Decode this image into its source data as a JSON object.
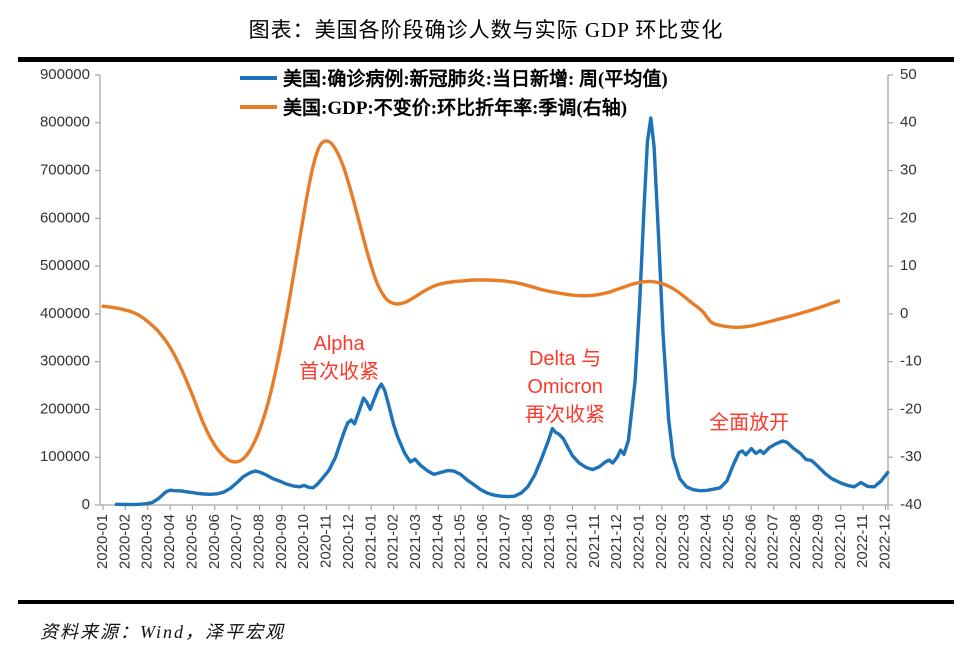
{
  "title": "图表：美国各阶段确诊人数与实际 GDP 环比变化",
  "source_note": "资料来源：Wind，泽平宏观",
  "chart_data": {
    "type": "line",
    "title": "图表：美国各阶段确诊人数与实际 GDP 环比变化",
    "grid": false,
    "legend_position": "top-center",
    "x_labels": [
      "2020-01",
      "2020-02",
      "2020-03",
      "2020-04",
      "2020-05",
      "2020-06",
      "2020-07",
      "2020-08",
      "2020-09",
      "2020-10",
      "2020-11",
      "2020-12",
      "2021-01",
      "2021-02",
      "2021-03",
      "2021-04",
      "2021-05",
      "2021-06",
      "2021-07",
      "2021-08",
      "2021-09",
      "2021-10",
      "2021-11",
      "2021-12",
      "2022-01",
      "2022-02",
      "2022-03",
      "2022-04",
      "2022-05",
      "2022-06",
      "2022-07",
      "2022-08",
      "2022-09",
      "2022-10",
      "2022-11",
      "2022-12"
    ],
    "left_axis": {
      "min": 0,
      "max": 900000,
      "step": 100000
    },
    "right_axis": {
      "min": -40,
      "max": 50,
      "step": 10
    },
    "axis_color": "#a6a6a6",
    "series": [
      {
        "name": "美国:确诊病例:新冠肺炎:当日新增: 周(平均值)",
        "axis": "left",
        "color": "#1e73b8",
        "smooth": false,
        "points": [
          [
            0.6,
            1500
          ],
          [
            1.0,
            1200
          ],
          [
            1.3,
            800
          ],
          [
            1.6,
            1500
          ],
          [
            1.9,
            2500
          ],
          [
            2.2,
            5000
          ],
          [
            2.5,
            14000
          ],
          [
            2.8,
            27000
          ],
          [
            3.0,
            31000
          ],
          [
            3.2,
            30000
          ],
          [
            3.5,
            29500
          ],
          [
            3.8,
            27000
          ],
          [
            4.0,
            26000
          ],
          [
            4.2,
            24500
          ],
          [
            4.5,
            23000
          ],
          [
            4.8,
            22500
          ],
          [
            5.1,
            23500
          ],
          [
            5.4,
            27000
          ],
          [
            5.7,
            35000
          ],
          [
            6.0,
            47000
          ],
          [
            6.3,
            60000
          ],
          [
            6.6,
            68000
          ],
          [
            6.8,
            71000
          ],
          [
            7.0,
            69000
          ],
          [
            7.3,
            63000
          ],
          [
            7.6,
            55000
          ],
          [
            7.9,
            50000
          ],
          [
            8.2,
            44000
          ],
          [
            8.5,
            40000
          ],
          [
            8.8,
            38000
          ],
          [
            9.0,
            41000
          ],
          [
            9.2,
            37000
          ],
          [
            9.4,
            36000
          ],
          [
            9.6,
            44000
          ],
          [
            9.8,
            55000
          ],
          [
            10.1,
            72000
          ],
          [
            10.4,
            100000
          ],
          [
            10.6,
            128000
          ],
          [
            10.8,
            155000
          ],
          [
            10.95,
            172000
          ],
          [
            11.1,
            178000
          ],
          [
            11.25,
            170000
          ],
          [
            11.45,
            196000
          ],
          [
            11.65,
            224000
          ],
          [
            11.8,
            215000
          ],
          [
            11.95,
            200000
          ],
          [
            12.1,
            218000
          ],
          [
            12.3,
            242000
          ],
          [
            12.45,
            253000
          ],
          [
            12.6,
            240000
          ],
          [
            12.8,
            205000
          ],
          [
            13.0,
            168000
          ],
          [
            13.2,
            140000
          ],
          [
            13.5,
            108000
          ],
          [
            13.75,
            90000
          ],
          [
            13.95,
            96000
          ],
          [
            14.2,
            83000
          ],
          [
            14.5,
            72000
          ],
          [
            14.8,
            64000
          ],
          [
            15.1,
            68000
          ],
          [
            15.4,
            72000
          ],
          [
            15.7,
            71000
          ],
          [
            16.0,
            64000
          ],
          [
            16.3,
            52000
          ],
          [
            16.6,
            42000
          ],
          [
            16.9,
            32000
          ],
          [
            17.2,
            25000
          ],
          [
            17.5,
            20500
          ],
          [
            17.8,
            18500
          ],
          [
            18.1,
            17500
          ],
          [
            18.4,
            18500
          ],
          [
            18.7,
            25000
          ],
          [
            19.0,
            38000
          ],
          [
            19.3,
            62000
          ],
          [
            19.6,
            95000
          ],
          [
            19.9,
            132000
          ],
          [
            20.1,
            160000
          ],
          [
            20.25,
            152000
          ],
          [
            20.4,
            148000
          ],
          [
            20.6,
            138000
          ],
          [
            20.8,
            120000
          ],
          [
            21.0,
            103000
          ],
          [
            21.3,
            88000
          ],
          [
            21.6,
            79000
          ],
          [
            21.9,
            74000
          ],
          [
            22.2,
            80000
          ],
          [
            22.5,
            91000
          ],
          [
            22.65,
            94000
          ],
          [
            22.8,
            88000
          ],
          [
            23.0,
            100000
          ],
          [
            23.15,
            115000
          ],
          [
            23.3,
            106000
          ],
          [
            23.5,
            135000
          ],
          [
            23.8,
            260000
          ],
          [
            24.0,
            420000
          ],
          [
            24.2,
            620000
          ],
          [
            24.35,
            760000
          ],
          [
            24.5,
            810000
          ],
          [
            24.65,
            750000
          ],
          [
            24.85,
            560000
          ],
          [
            25.05,
            360000
          ],
          [
            25.3,
            180000
          ],
          [
            25.5,
            100000
          ],
          [
            25.8,
            55000
          ],
          [
            26.1,
            38000
          ],
          [
            26.4,
            32000
          ],
          [
            26.7,
            30000
          ],
          [
            27.0,
            30500
          ],
          [
            27.3,
            33000
          ],
          [
            27.6,
            36000
          ],
          [
            27.9,
            50000
          ],
          [
            28.2,
            85000
          ],
          [
            28.45,
            110000
          ],
          [
            28.6,
            113000
          ],
          [
            28.75,
            105000
          ],
          [
            29.0,
            118000
          ],
          [
            29.2,
            108000
          ],
          [
            29.4,
            114000
          ],
          [
            29.55,
            108000
          ],
          [
            29.8,
            120000
          ],
          [
            30.1,
            128000
          ],
          [
            30.4,
            134000
          ],
          [
            30.6,
            131000
          ],
          [
            30.9,
            118000
          ],
          [
            31.2,
            108000
          ],
          [
            31.45,
            95000
          ],
          [
            31.7,
            93000
          ],
          [
            32.0,
            80000
          ],
          [
            32.3,
            66000
          ],
          [
            32.6,
            55000
          ],
          [
            33.0,
            46000
          ],
          [
            33.3,
            41000
          ],
          [
            33.6,
            38000
          ],
          [
            33.9,
            47000
          ],
          [
            34.2,
            39000
          ],
          [
            34.5,
            38000
          ],
          [
            34.8,
            50000
          ],
          [
            35.1,
            68000
          ]
        ]
      },
      {
        "name": "美国:GDP:不变价:环比折年率:季调(右轴)",
        "axis": "right",
        "color": "#e87d28",
        "smooth": true,
        "points": [
          [
            0,
            1.6
          ],
          [
            0.5,
            1.3
          ],
          [
            1,
            0.8
          ],
          [
            1.5,
            0
          ],
          [
            2,
            -1.6
          ],
          [
            2.5,
            -3.8
          ],
          [
            3,
            -7
          ],
          [
            3.5,
            -11.5
          ],
          [
            4,
            -17
          ],
          [
            4.5,
            -23
          ],
          [
            5,
            -27.5
          ],
          [
            5.5,
            -30.2
          ],
          [
            5.9,
            -31
          ],
          [
            6.3,
            -30.2
          ],
          [
            6.7,
            -27.5
          ],
          [
            7.1,
            -23
          ],
          [
            7.5,
            -16.5
          ],
          [
            7.9,
            -8
          ],
          [
            8.3,
            2
          ],
          [
            8.7,
            13
          ],
          [
            9.1,
            24
          ],
          [
            9.4,
            31
          ],
          [
            9.7,
            35.2
          ],
          [
            10.0,
            36.2
          ],
          [
            10.3,
            35.2
          ],
          [
            10.7,
            31.5
          ],
          [
            11.1,
            25.5
          ],
          [
            11.5,
            18.5
          ],
          [
            11.9,
            11.5
          ],
          [
            12.3,
            6
          ],
          [
            12.7,
            3
          ],
          [
            13.1,
            2.1
          ],
          [
            13.5,
            2.4
          ],
          [
            13.9,
            3.4
          ],
          [
            14.3,
            4.6
          ],
          [
            14.7,
            5.6
          ],
          [
            15.1,
            6.3
          ],
          [
            15.6,
            6.7
          ],
          [
            16.1,
            6.9
          ],
          [
            16.6,
            7.1
          ],
          [
            17.1,
            7.1
          ],
          [
            17.6,
            7.0
          ],
          [
            18.1,
            6.8
          ],
          [
            18.6,
            6.4
          ],
          [
            19.1,
            5.8
          ],
          [
            19.6,
            5.1
          ],
          [
            20.1,
            4.6
          ],
          [
            20.6,
            4.2
          ],
          [
            21.1,
            3.9
          ],
          [
            21.6,
            3.8
          ],
          [
            22.1,
            4.0
          ],
          [
            22.6,
            4.5
          ],
          [
            23.1,
            5.3
          ],
          [
            23.6,
            6.1
          ],
          [
            24.0,
            6.6
          ],
          [
            24.4,
            6.8
          ],
          [
            24.8,
            6.6
          ],
          [
            25.2,
            6.0
          ],
          [
            25.6,
            5.0
          ],
          [
            26.0,
            3.6
          ],
          [
            26.4,
            2.1
          ],
          [
            26.8,
            0.6
          ],
          [
            27.2,
            -1.7
          ],
          [
            27.6,
            -2.4
          ],
          [
            28.0,
            -2.7
          ],
          [
            28.4,
            -2.8
          ],
          [
            28.9,
            -2.6
          ],
          [
            29.4,
            -2.1
          ],
          [
            29.9,
            -1.5
          ],
          [
            30.4,
            -0.9
          ],
          [
            30.9,
            -0.3
          ],
          [
            31.4,
            0.4
          ],
          [
            31.9,
            1.1
          ],
          [
            32.4,
            1.9
          ],
          [
            32.9,
            2.7
          ]
        ]
      }
    ],
    "annotations": [
      {
        "lines": [
          "Alpha",
          "首次收紧"
        ],
        "x": 10.56,
        "y": 324000,
        "color": "#fb3a2c"
      },
      {
        "lines": [
          "Delta 与",
          "Omicron",
          "再次收紧"
        ],
        "x": 20.67,
        "y": 293000,
        "color": "#fb3a2c"
      },
      {
        "lines": [
          "全面放开"
        ],
        "x": 28.9,
        "y": 159000,
        "color": "#fb3a2c"
      }
    ]
  }
}
